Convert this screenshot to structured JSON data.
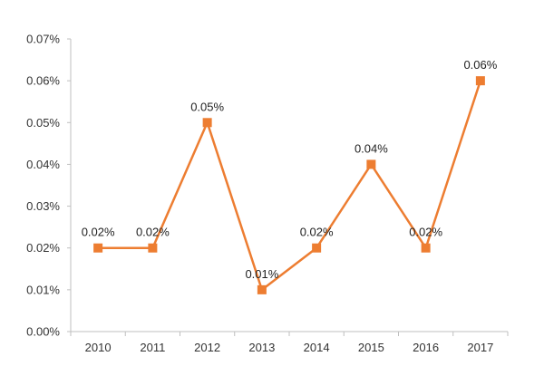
{
  "chart_data": {
    "type": "line",
    "categories": [
      "2010",
      "2011",
      "2012",
      "2013",
      "2014",
      "2015",
      "2016",
      "2017"
    ],
    "series": [
      {
        "values": [
          0.02,
          0.02,
          0.05,
          0.01,
          0.02,
          0.04,
          0.02,
          0.06
        ],
        "labels": [
          "0.02%",
          "0.02%",
          "0.05%",
          "0.01%",
          "0.02%",
          "0.04%",
          "0.02%",
          "0.06%"
        ],
        "color": "#ED7D31",
        "marker": "square"
      }
    ],
    "y_ticks": [
      "0.00%",
      "0.01%",
      "0.02%",
      "0.03%",
      "0.04%",
      "0.05%",
      "0.06%",
      "0.07%"
    ],
    "ylim": [
      0,
      0.07
    ],
    "grid": false,
    "legend": "none",
    "axis_color": "#BFBFBF"
  }
}
